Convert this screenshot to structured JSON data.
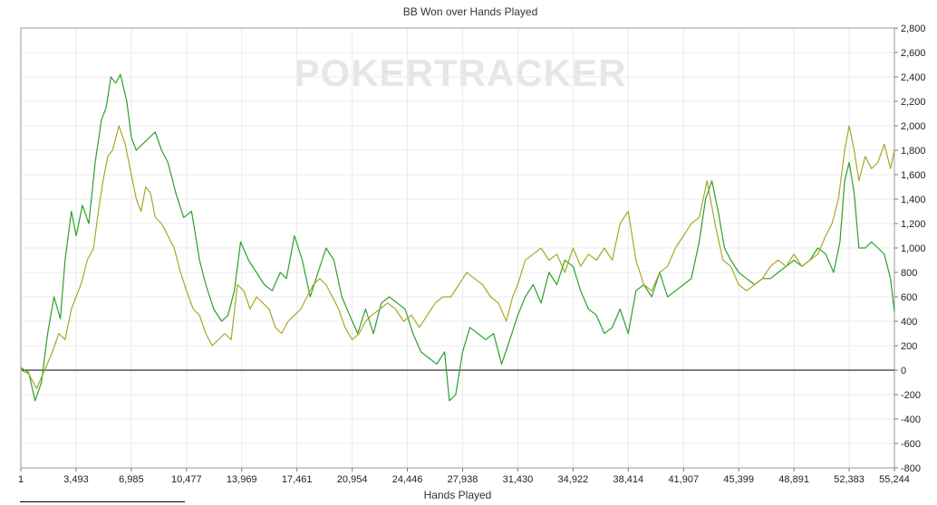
{
  "chart_data": {
    "type": "line",
    "title": "BB Won over Hands Played",
    "watermark": "POKERTRACKER",
    "xlabel": "Hands Played",
    "ylabel": "",
    "x_ticks": [
      "1",
      "3,493",
      "6,985",
      "10,477",
      "13,969",
      "17,461",
      "20,954",
      "24,446",
      "27,938",
      "31,430",
      "34,922",
      "38,414",
      "41,907",
      "45,399",
      "48,891",
      "52,383",
      "55,244"
    ],
    "x_tick_values": [
      1,
      3493,
      6985,
      10477,
      13969,
      17461,
      20954,
      24446,
      27938,
      31430,
      34922,
      38414,
      41907,
      45399,
      48891,
      52383,
      55244
    ],
    "y_ticks": [
      "2,800",
      "2,600",
      "2,400",
      "2,200",
      "2,000",
      "1,800",
      "1,600",
      "1,400",
      "1,200",
      "1,000",
      "800",
      "600",
      "400",
      "200",
      "0",
      "-200",
      "-400",
      "-600",
      "-800"
    ],
    "y_tick_values": [
      2800,
      2600,
      2400,
      2200,
      2000,
      1800,
      1600,
      1400,
      1200,
      1000,
      800,
      600,
      400,
      200,
      0,
      -200,
      -400,
      -600,
      -800
    ],
    "xlim": [
      1,
      55244
    ],
    "ylim": [
      -800,
      2800
    ],
    "grid": true,
    "legend": "none",
    "series": [
      {
        "color": "#2ca02c",
        "points": [
          [
            1,
            20
          ],
          [
            500,
            -20
          ],
          [
            900,
            -250
          ],
          [
            1300,
            -100
          ],
          [
            1700,
            300
          ],
          [
            2100,
            600
          ],
          [
            2500,
            420
          ],
          [
            2800,
            900
          ],
          [
            3200,
            1300
          ],
          [
            3500,
            1100
          ],
          [
            3900,
            1350
          ],
          [
            4300,
            1200
          ],
          [
            4700,
            1700
          ],
          [
            5100,
            2050
          ],
          [
            5400,
            2150
          ],
          [
            5700,
            2400
          ],
          [
            6000,
            2350
          ],
          [
            6300,
            2420
          ],
          [
            6700,
            2200
          ],
          [
            7000,
            1900
          ],
          [
            7300,
            1800
          ],
          [
            7700,
            1850
          ],
          [
            8100,
            1900
          ],
          [
            8500,
            1950
          ],
          [
            8900,
            1800
          ],
          [
            9300,
            1700
          ],
          [
            9800,
            1450
          ],
          [
            10300,
            1250
          ],
          [
            10800,
            1300
          ],
          [
            11300,
            900
          ],
          [
            11700,
            700
          ],
          [
            12200,
            500
          ],
          [
            12700,
            400
          ],
          [
            13100,
            450
          ],
          [
            13500,
            650
          ],
          [
            13900,
            1050
          ],
          [
            14400,
            900
          ],
          [
            14900,
            800
          ],
          [
            15400,
            700
          ],
          [
            15900,
            650
          ],
          [
            16400,
            800
          ],
          [
            16800,
            750
          ],
          [
            17300,
            1100
          ],
          [
            17800,
            900
          ],
          [
            18300,
            600
          ],
          [
            18800,
            800
          ],
          [
            19300,
            1000
          ],
          [
            19800,
            900
          ],
          [
            20300,
            600
          ],
          [
            20800,
            450
          ],
          [
            21300,
            300
          ],
          [
            21800,
            500
          ],
          [
            22300,
            300
          ],
          [
            22800,
            550
          ],
          [
            23300,
            600
          ],
          [
            23800,
            550
          ],
          [
            24300,
            500
          ],
          [
            24800,
            300
          ],
          [
            25300,
            150
          ],
          [
            25800,
            100
          ],
          [
            26300,
            50
          ],
          [
            26800,
            150
          ],
          [
            27100,
            -250
          ],
          [
            27500,
            -200
          ],
          [
            27938,
            150
          ],
          [
            28400,
            350
          ],
          [
            28900,
            300
          ],
          [
            29400,
            250
          ],
          [
            29900,
            300
          ],
          [
            30400,
            50
          ],
          [
            30800,
            200
          ],
          [
            31430,
            450
          ],
          [
            31900,
            600
          ],
          [
            32400,
            700
          ],
          [
            32900,
            550
          ],
          [
            33400,
            800
          ],
          [
            33900,
            700
          ],
          [
            34400,
            900
          ],
          [
            34922,
            850
          ],
          [
            35400,
            650
          ],
          [
            35900,
            500
          ],
          [
            36400,
            450
          ],
          [
            36900,
            300
          ],
          [
            37400,
            350
          ],
          [
            37900,
            500
          ],
          [
            38414,
            300
          ],
          [
            38900,
            650
          ],
          [
            39400,
            700
          ],
          [
            39900,
            600
          ],
          [
            40400,
            800
          ],
          [
            40900,
            600
          ],
          [
            41400,
            650
          ],
          [
            41907,
            700
          ],
          [
            42400,
            750
          ],
          [
            42900,
            1050
          ],
          [
            43300,
            1400
          ],
          [
            43700,
            1550
          ],
          [
            44100,
            1300
          ],
          [
            44500,
            1000
          ],
          [
            44900,
            900
          ],
          [
            45399,
            800
          ],
          [
            45900,
            750
          ],
          [
            46400,
            700
          ],
          [
            46900,
            750
          ],
          [
            47400,
            750
          ],
          [
            47900,
            800
          ],
          [
            48400,
            850
          ],
          [
            48891,
            900
          ],
          [
            49400,
            850
          ],
          [
            49900,
            900
          ],
          [
            50400,
            1000
          ],
          [
            50900,
            950
          ],
          [
            51400,
            800
          ],
          [
            51800,
            1050
          ],
          [
            52100,
            1550
          ],
          [
            52383,
            1700
          ],
          [
            52700,
            1450
          ],
          [
            53000,
            1000
          ],
          [
            53400,
            1000
          ],
          [
            53800,
            1050
          ],
          [
            54200,
            1000
          ],
          [
            54600,
            950
          ],
          [
            55000,
            750
          ],
          [
            55244,
            480
          ]
        ]
      },
      {
        "color": "#a8a828",
        "points": [
          [
            1,
            0
          ],
          [
            500,
            -30
          ],
          [
            1000,
            -150
          ],
          [
            1500,
            0
          ],
          [
            2000,
            150
          ],
          [
            2400,
            300
          ],
          [
            2800,
            250
          ],
          [
            3200,
            500
          ],
          [
            3493,
            600
          ],
          [
            3800,
            700
          ],
          [
            4200,
            900
          ],
          [
            4600,
            1000
          ],
          [
            4900,
            1300
          ],
          [
            5200,
            1550
          ],
          [
            5500,
            1750
          ],
          [
            5800,
            1800
          ],
          [
            6200,
            2000
          ],
          [
            6600,
            1850
          ],
          [
            6985,
            1600
          ],
          [
            7300,
            1400
          ],
          [
            7600,
            1300
          ],
          [
            7900,
            1500
          ],
          [
            8200,
            1450
          ],
          [
            8500,
            1250
          ],
          [
            8900,
            1200
          ],
          [
            9300,
            1100
          ],
          [
            9700,
            1000
          ],
          [
            10100,
            800
          ],
          [
            10477,
            650
          ],
          [
            10900,
            500
          ],
          [
            11300,
            450
          ],
          [
            11700,
            300
          ],
          [
            12100,
            200
          ],
          [
            12500,
            250
          ],
          [
            12900,
            300
          ],
          [
            13300,
            250
          ],
          [
            13700,
            700
          ],
          [
            14100,
            650
          ],
          [
            14500,
            500
          ],
          [
            14900,
            600
          ],
          [
            15300,
            550
          ],
          [
            15700,
            500
          ],
          [
            16100,
            350
          ],
          [
            16500,
            300
          ],
          [
            16900,
            400
          ],
          [
            17300,
            450
          ],
          [
            17700,
            500
          ],
          [
            18100,
            600
          ],
          [
            18500,
            700
          ],
          [
            18900,
            750
          ],
          [
            19300,
            700
          ],
          [
            19700,
            600
          ],
          [
            20100,
            500
          ],
          [
            20500,
            350
          ],
          [
            20954,
            250
          ],
          [
            21400,
            300
          ],
          [
            21800,
            400
          ],
          [
            22200,
            450
          ],
          [
            22700,
            500
          ],
          [
            23200,
            550
          ],
          [
            23700,
            500
          ],
          [
            24200,
            400
          ],
          [
            24700,
            450
          ],
          [
            25200,
            350
          ],
          [
            25700,
            450
          ],
          [
            26200,
            550
          ],
          [
            26700,
            600
          ],
          [
            27200,
            600
          ],
          [
            27700,
            700
          ],
          [
            28200,
            800
          ],
          [
            28700,
            750
          ],
          [
            29200,
            700
          ],
          [
            29700,
            600
          ],
          [
            30200,
            550
          ],
          [
            30700,
            400
          ],
          [
            31100,
            600
          ],
          [
            31430,
            700
          ],
          [
            31900,
            900
          ],
          [
            32400,
            950
          ],
          [
            32900,
            1000
          ],
          [
            33400,
            900
          ],
          [
            33900,
            950
          ],
          [
            34400,
            800
          ],
          [
            34922,
            1000
          ],
          [
            35400,
            850
          ],
          [
            35900,
            950
          ],
          [
            36400,
            900
          ],
          [
            36900,
            1000
          ],
          [
            37400,
            900
          ],
          [
            37900,
            1200
          ],
          [
            38414,
            1300
          ],
          [
            38900,
            900
          ],
          [
            39400,
            700
          ],
          [
            39900,
            650
          ],
          [
            40400,
            800
          ],
          [
            40900,
            850
          ],
          [
            41400,
            1000
          ],
          [
            41907,
            1100
          ],
          [
            42400,
            1200
          ],
          [
            42900,
            1250
          ],
          [
            43400,
            1550
          ],
          [
            43900,
            1200
          ],
          [
            44400,
            900
          ],
          [
            44900,
            850
          ],
          [
            45399,
            700
          ],
          [
            45900,
            650
          ],
          [
            46400,
            700
          ],
          [
            46900,
            750
          ],
          [
            47400,
            850
          ],
          [
            47900,
            900
          ],
          [
            48400,
            850
          ],
          [
            48891,
            950
          ],
          [
            49400,
            850
          ],
          [
            49900,
            900
          ],
          [
            50400,
            950
          ],
          [
            50900,
            1100
          ],
          [
            51300,
            1200
          ],
          [
            51700,
            1400
          ],
          [
            52100,
            1800
          ],
          [
            52383,
            2000
          ],
          [
            52700,
            1800
          ],
          [
            53000,
            1550
          ],
          [
            53400,
            1750
          ],
          [
            53800,
            1650
          ],
          [
            54200,
            1700
          ],
          [
            54600,
            1850
          ],
          [
            55000,
            1650
          ],
          [
            55244,
            1800
          ]
        ]
      }
    ]
  }
}
